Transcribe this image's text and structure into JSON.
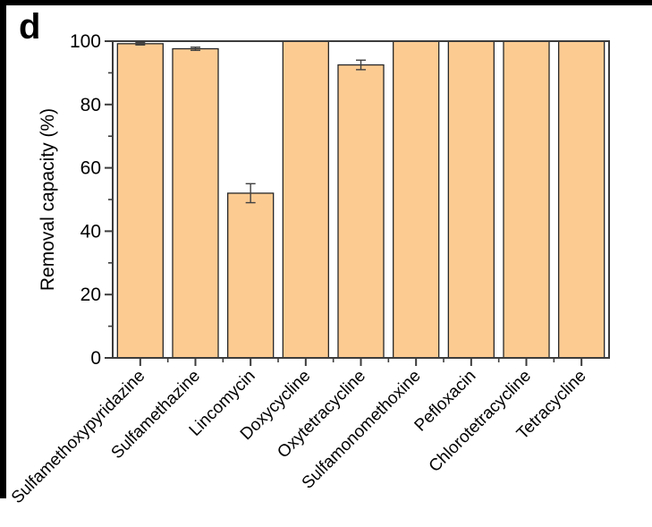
{
  "figure": {
    "panel_label": "d"
  },
  "chart_data": {
    "type": "bar",
    "title": "",
    "xlabel": "",
    "ylabel": "Removal capacity (%)",
    "ylim": [
      0,
      100
    ],
    "yticks_major": [
      0,
      20,
      40,
      60,
      80,
      100
    ],
    "yticks_minor": [
      10,
      30,
      50,
      70,
      90
    ],
    "categories": [
      "Sulfamethoxypyridazine",
      "Sulfamethazine",
      "Lincomycin",
      "Doxycycline",
      "Oxytetracycline",
      "Sulfamonomethoxine",
      "Pefloxacin",
      "Chlorotetracycline",
      "Tetracycline"
    ],
    "values": [
      99.2,
      97.6,
      52,
      100,
      92.5,
      100,
      100,
      100,
      100
    ],
    "errors": [
      0.4,
      0.5,
      3,
      0,
      1.5,
      0,
      0,
      0,
      0
    ],
    "grid": false,
    "legend": null,
    "colors": {
      "bar_fill": "#FCCB92",
      "bar_edge": "#262626",
      "axis": "#3C3C3C",
      "error_bar": "#404040",
      "text": "#000000"
    }
  }
}
